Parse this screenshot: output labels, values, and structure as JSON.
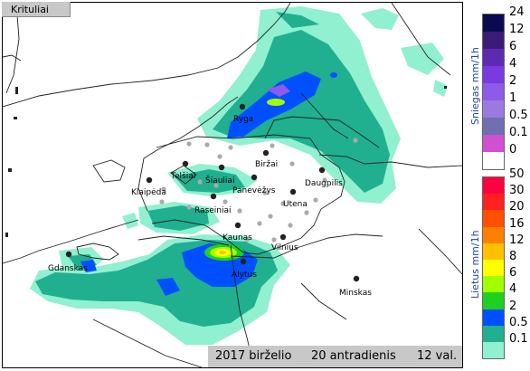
{
  "panel_title": "Krituliai",
  "footer": {
    "year_month": "2017 birželio",
    "day": "20 antradienis",
    "time": "12 val."
  },
  "cities": [
    {
      "name": "Ryga",
      "dot": true
    },
    {
      "name": "Telšiai",
      "dot": true
    },
    {
      "name": "Šiauliai",
      "dot": true
    },
    {
      "name": "Biržai",
      "dot": true
    },
    {
      "name": "Klaipėda",
      "dot": true
    },
    {
      "name": "Panevėžys",
      "dot": true
    },
    {
      "name": "Daugpilis",
      "dot": true
    },
    {
      "name": "Utena",
      "dot": true
    },
    {
      "name": "Raseiniai",
      "dot": true
    },
    {
      "name": "Kaunas",
      "dot": true
    },
    {
      "name": "Vilnius",
      "dot": true
    },
    {
      "name": "Alytus",
      "dot": true
    },
    {
      "name": "Gdanskas",
      "dot": true
    },
    {
      "name": "Minskas",
      "dot": true
    }
  ],
  "legend_snow": {
    "title": "Sniegas mm/1h",
    "labels": [
      "24",
      "12",
      "6",
      "4",
      "2",
      "1",
      "0.5",
      "0.1",
      "0"
    ],
    "colors": [
      "#0a0a50",
      "#3c1a78",
      "#5e2ab0",
      "#7a3ae0",
      "#8e5ae8",
      "#9a7ae0",
      "#7070b0",
      "#d050d0",
      "#ffffff"
    ]
  },
  "legend_rain": {
    "title": "Lietus mm/1h",
    "labels": [
      "50",
      "30",
      "20",
      "16",
      "12",
      "8",
      "6",
      "4",
      "2",
      "0.5",
      "0.1"
    ],
    "colors": [
      "#ff0040",
      "#ff2020",
      "#ff5000",
      "#ff8000",
      "#ffc000",
      "#ffff00",
      "#a0ff00",
      "#20d020",
      "#0050ff",
      "#20b090",
      "#90f0d0"
    ]
  }
}
